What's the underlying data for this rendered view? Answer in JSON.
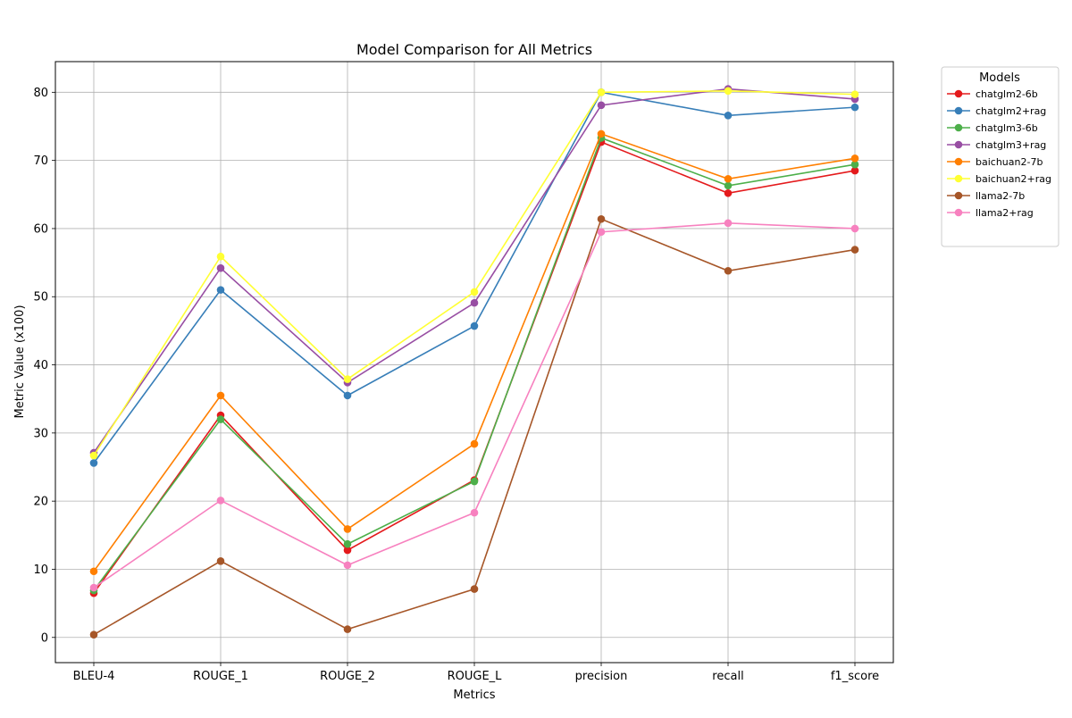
{
  "chart_data": {
    "type": "line",
    "title": "Model Comparison for All Metrics",
    "xlabel": "Metrics",
    "ylabel": "Metric Value (x100)",
    "categories": [
      "BLEU-4",
      "ROUGE_1",
      "ROUGE_2",
      "ROUGE_L",
      "precision",
      "recall",
      "f1_score"
    ],
    "ylim": [
      -3.7,
      84.5
    ],
    "yticks": [
      0,
      10,
      20,
      30,
      40,
      50,
      60,
      70,
      80
    ],
    "grid": true,
    "legend": {
      "title": "Models",
      "placement": "outside-top-right"
    },
    "series": [
      {
        "name": "chatglm2-6b",
        "color": "#e41a1c",
        "values": [
          6.5,
          32.6,
          12.8,
          23.1,
          72.7,
          65.2,
          68.5
        ]
      },
      {
        "name": "chatglm2+rag",
        "color": "#377eb8",
        "values": [
          25.6,
          51.0,
          35.5,
          45.7,
          80.0,
          76.6,
          77.8
        ]
      },
      {
        "name": "chatglm3-6b",
        "color": "#4daf4a",
        "values": [
          6.9,
          32.0,
          13.7,
          22.9,
          73.3,
          66.3,
          69.4
        ]
      },
      {
        "name": "chatglm3+rag",
        "color": "#984ea3",
        "values": [
          27.1,
          54.2,
          37.4,
          49.1,
          78.1,
          80.5,
          79.0
        ]
      },
      {
        "name": "baichuan2-7b",
        "color": "#ff7f00",
        "values": [
          9.7,
          35.5,
          15.9,
          28.4,
          73.9,
          67.3,
          70.3
        ]
      },
      {
        "name": "baichuan2+rag",
        "color": "#ffff33",
        "values": [
          26.7,
          55.9,
          37.9,
          50.7,
          80.0,
          80.2,
          79.7
        ]
      },
      {
        "name": "llama2-7b",
        "color": "#a65628",
        "values": [
          0.4,
          11.2,
          1.2,
          7.1,
          61.4,
          53.8,
          56.9
        ]
      },
      {
        "name": "llama2+rag",
        "color": "#f781bf",
        "values": [
          7.3,
          20.1,
          10.6,
          18.3,
          59.5,
          60.8,
          60.0
        ]
      }
    ]
  }
}
